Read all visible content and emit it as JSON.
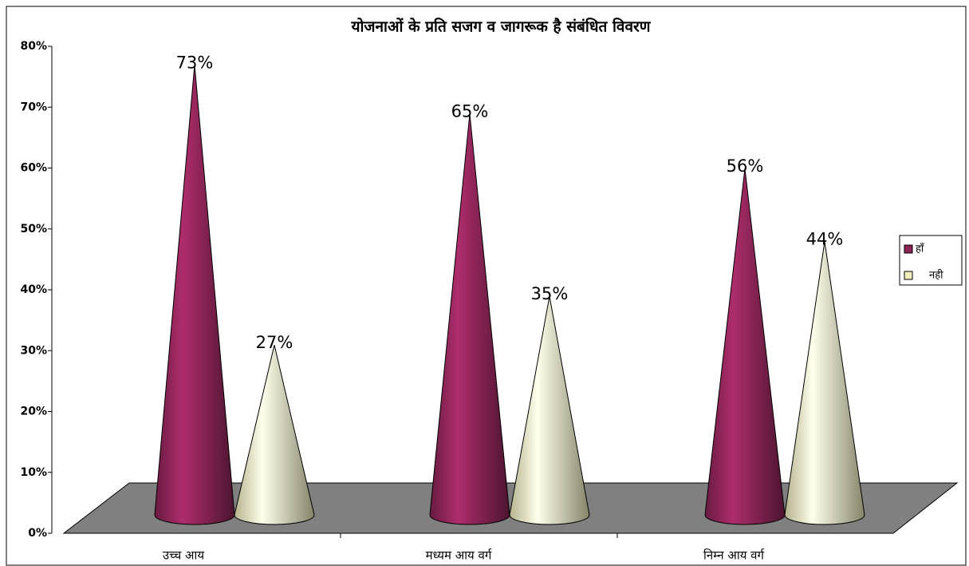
{
  "chart_data": {
    "type": "cone",
    "title": "योजनाओं के प्रति सजग व जागरूक है संबंधित विवरण",
    "categories": [
      "उच्च आय",
      "मध्यम आय वर्ग",
      "निम्न आय वर्ग"
    ],
    "series": [
      {
        "name": "हाँ",
        "color": "#8b2456",
        "values": [
          73,
          65,
          56
        ],
        "value_labels": [
          "73%",
          "65%",
          "56%"
        ]
      },
      {
        "name": "नही",
        "color": "#f2efbd",
        "values": [
          27,
          35,
          44
        ],
        "value_labels": [
          "27%",
          "35%",
          "44%"
        ]
      }
    ],
    "ylim": [
      0,
      80
    ],
    "yticks": [
      {
        "value": 0,
        "label": "0%"
      },
      {
        "value": 10,
        "label": "10%"
      },
      {
        "value": 20,
        "label": "20%"
      },
      {
        "value": 30,
        "label": "30%"
      },
      {
        "value": 40,
        "label": "40%"
      },
      {
        "value": 50,
        "label": "50%"
      },
      {
        "value": 60,
        "label": "60%"
      },
      {
        "value": 70,
        "label": "70%"
      },
      {
        "value": 80,
        "label": "80%"
      }
    ],
    "legend": "right"
  }
}
